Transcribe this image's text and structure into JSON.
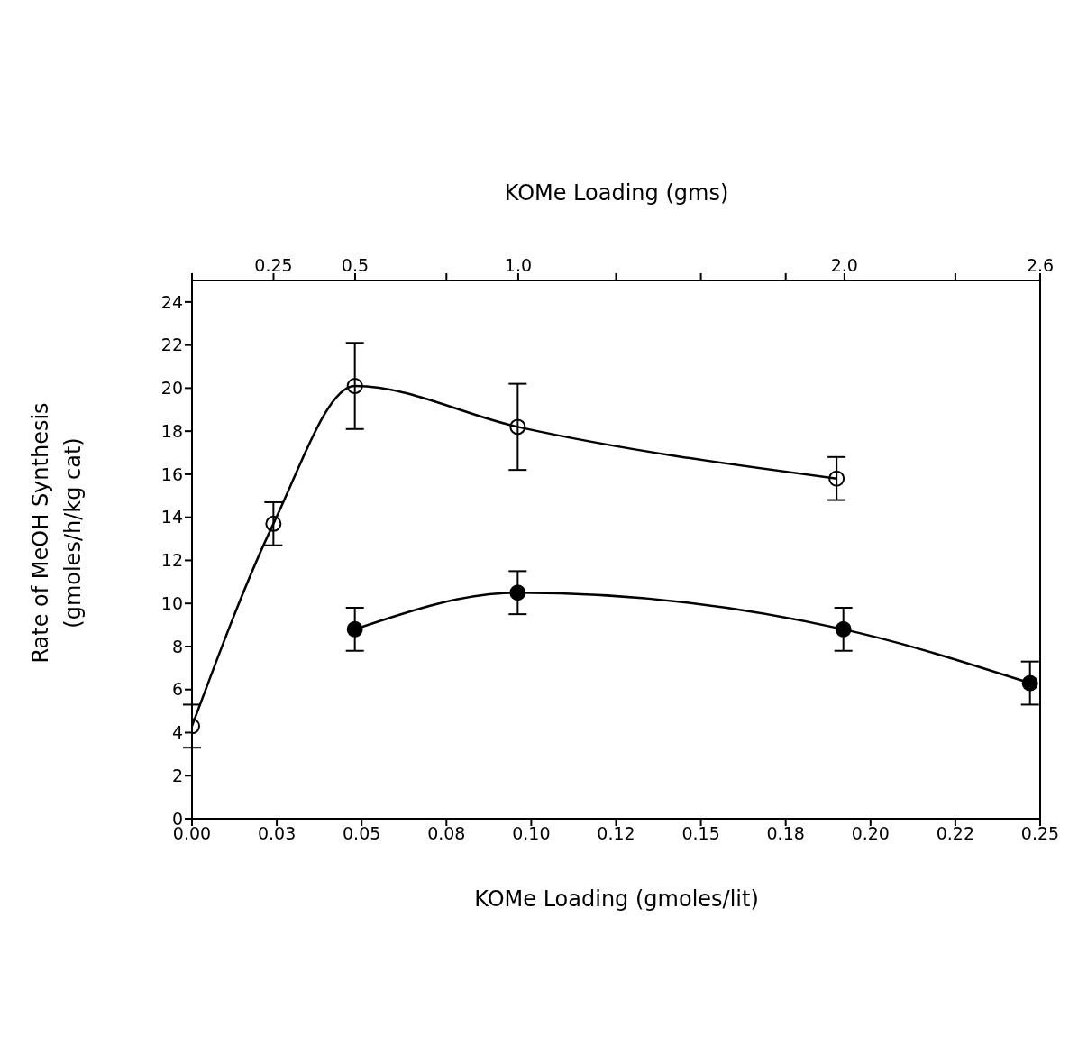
{
  "chart_data": {
    "type": "line",
    "xlabel": "KOMe Loading (gmoles/lit)",
    "x2label": "KOMe Loading (gms)",
    "ylabel": "Rate of MeOH Synthesis\n(gmoles/h/kg cat)",
    "xlim": [
      0,
      0.25
    ],
    "xticks": [
      {
        "value": 0,
        "label": "0.00"
      },
      {
        "value": 0.025,
        "label": "0.03"
      },
      {
        "value": 0.05,
        "label": "0.05"
      },
      {
        "value": 0.075,
        "label": "0.08"
      },
      {
        "value": 0.1,
        "label": "0.10"
      },
      {
        "value": 0.125,
        "label": "0.12"
      },
      {
        "value": 0.15,
        "label": "0.15"
      },
      {
        "value": 0.175,
        "label": "0.18"
      },
      {
        "value": 0.2,
        "label": "0.20"
      },
      {
        "value": 0.225,
        "label": "0.22"
      },
      {
        "value": 0.25,
        "label": "0.25"
      }
    ],
    "x2lim": [
      0,
      2.6
    ],
    "x2ticks": [
      {
        "value": 0,
        "label": null
      },
      0.25,
      0.5,
      {
        "value": 0.78,
        "label": null
      },
      {
        "value": 1.0,
        "label": "1.0"
      },
      {
        "value": 1.3,
        "label": null
      },
      {
        "value": 1.56,
        "label": null
      },
      {
        "value": 1.82,
        "label": null
      },
      {
        "value": 2.0,
        "label": "2.0"
      },
      {
        "value": 2.34,
        "label": null
      },
      2.6
    ],
    "ylim": [
      0,
      25
    ],
    "yticks": [
      0,
      2,
      4,
      6,
      8,
      10,
      12,
      14,
      16,
      18,
      20,
      22,
      24
    ],
    "marker": "circle",
    "line_style": "solid",
    "grid": false,
    "legend": false,
    "series": [
      {
        "color": "#000000",
        "x": [
          0,
          0.024,
          0.048,
          0.096,
          0.19
        ],
        "values": [
          4.3,
          13.7,
          20.1,
          18.2,
          15.8
        ],
        "errors": [
          1,
          1,
          2,
          2,
          1
        ]
      },
      {
        "color": "#000000",
        "x": [
          0.048,
          0.096,
          0.192,
          0.247
        ],
        "values": [
          8.8,
          10.5,
          8.8,
          6.3
        ],
        "errors": [
          1,
          1,
          1,
          1
        ]
      }
    ]
  }
}
